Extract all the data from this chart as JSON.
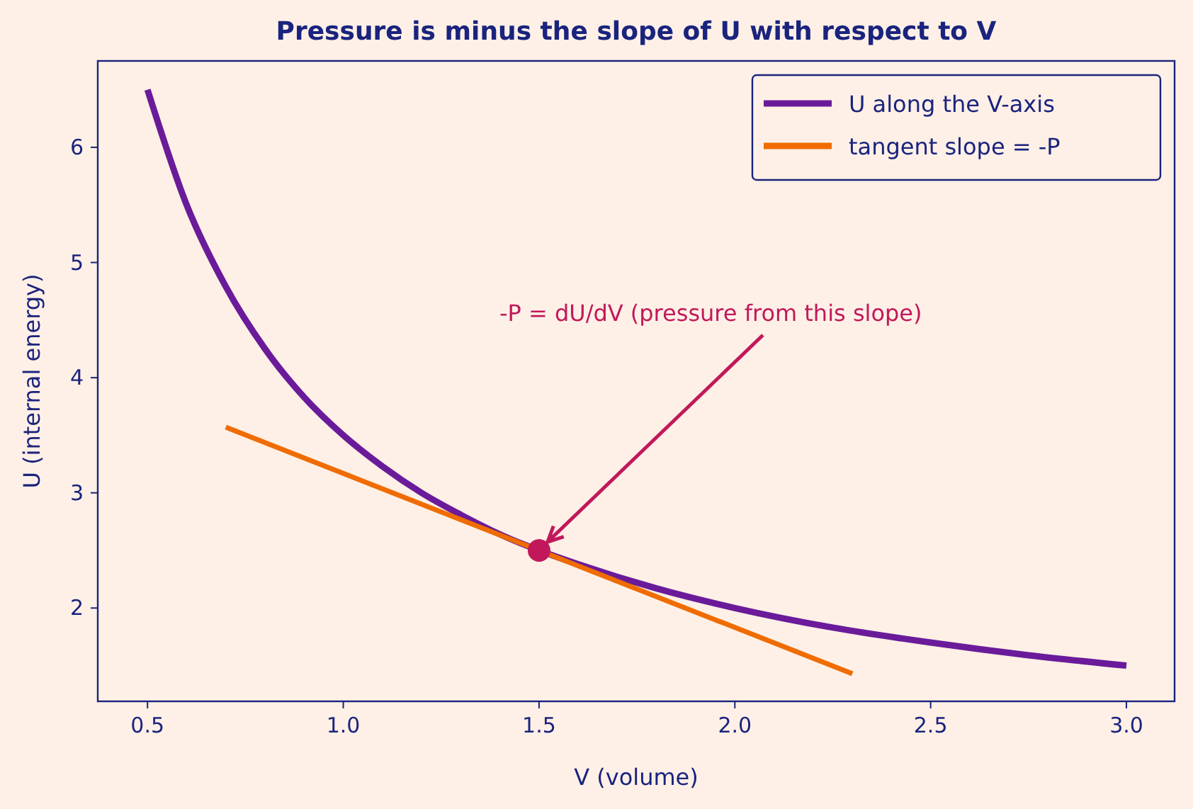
{
  "chart_data": {
    "type": "line",
    "title": "Pressure is minus the slope of U with respect to V",
    "xlabel": "V (volume)",
    "ylabel": "U (internal energy)",
    "xlim": [
      0.373,
      3.123
    ],
    "ylim": [
      1.19,
      6.75
    ],
    "xticks": [
      {
        "value": 0.5,
        "label": "0.5"
      },
      {
        "value": 1,
        "label": "1.0"
      },
      {
        "value": 1.5,
        "label": "1.5"
      },
      {
        "value": 2,
        "label": "2.0"
      },
      {
        "value": 2.5,
        "label": "2.5"
      },
      {
        "value": 3,
        "label": "3.0"
      }
    ],
    "yticks": [
      2,
      3,
      4,
      5,
      6
    ],
    "grid": false,
    "legend": "top right",
    "series": [
      {
        "name": "U along the V-axis",
        "color": "#6a1b9a",
        "x": [
          0.5,
          0.6,
          0.7,
          0.8,
          0.9,
          1.0,
          1.1,
          1.2,
          1.3,
          1.4,
          1.5,
          1.6,
          1.8,
          2.0,
          2.25,
          2.5,
          2.75,
          3.0
        ],
        "values": [
          6.5,
          5.5,
          4.79,
          4.25,
          3.83,
          3.5,
          3.23,
          3.0,
          2.81,
          2.64,
          2.5,
          2.38,
          2.17,
          2.0,
          1.83,
          1.7,
          1.59,
          1.5
        ]
      },
      {
        "name": "tangent slope = -P",
        "color": "#ef6c00",
        "x": [
          0.7,
          2.3
        ],
        "values": [
          3.57,
          1.43
        ]
      },
      {
        "type": "scatter",
        "color": "#c2185b",
        "x": [
          1.5
        ],
        "values": [
          2.5
        ]
      }
    ],
    "annotations": [
      {
        "text": "-P = dU/dV  (pressure from this slope)",
        "x": 1.5,
        "y": 2.5
      }
    ]
  }
}
